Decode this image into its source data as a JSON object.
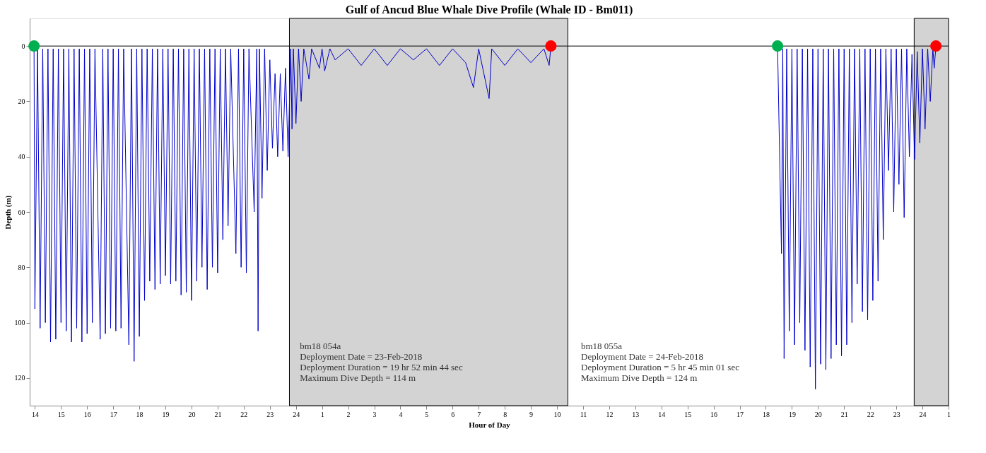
{
  "chart_data": {
    "type": "line",
    "title": "Gulf of Ancud Blue Whale Dive Profile (Whale ID - Bm011)",
    "xlabel": "Hour of Day",
    "ylabel": "Depth (m)",
    "series": [
      {
        "color": "#0000cc",
        "x": [
          "2018-02-23T13:58",
          "2018-02-23T14:00",
          "2018-02-23T14:06",
          "2018-02-23T14:12",
          "2018-02-23T14:18",
          "2018-02-23T14:24",
          "2018-02-23T14:30",
          "2018-02-23T14:36",
          "2018-02-23T14:42",
          "2018-02-23T14:48",
          "2018-02-23T14:54",
          "2018-02-23T15:00",
          "2018-02-23T15:06",
          "2018-02-23T15:12",
          "2018-02-23T15:18",
          "2018-02-23T15:24",
          "2018-02-23T15:30",
          "2018-02-23T15:36",
          "2018-02-23T15:42",
          "2018-02-23T15:48",
          "2018-02-23T15:54",
          "2018-02-23T16:00",
          "2018-02-23T16:06",
          "2018-02-23T16:12",
          "2018-02-23T16:18",
          "2018-02-23T16:30",
          "2018-02-23T16:36",
          "2018-02-23T16:42",
          "2018-02-23T16:48",
          "2018-02-23T16:54",
          "2018-02-23T17:00",
          "2018-02-23T17:06",
          "2018-02-23T17:12",
          "2018-02-23T17:18",
          "2018-02-23T17:24",
          "2018-02-23T17:36",
          "2018-02-23T17:42",
          "2018-02-23T17:48",
          "2018-02-23T17:54",
          "2018-02-23T18:00",
          "2018-02-23T18:06",
          "2018-02-23T18:12",
          "2018-02-23T18:18",
          "2018-02-23T18:24",
          "2018-02-23T18:30",
          "2018-02-23T18:36",
          "2018-02-23T18:42",
          "2018-02-23T18:48",
          "2018-02-23T18:54",
          "2018-02-23T19:00",
          "2018-02-23T19:06",
          "2018-02-23T19:12",
          "2018-02-23T19:18",
          "2018-02-23T19:24",
          "2018-02-23T19:30",
          "2018-02-23T19:36",
          "2018-02-23T19:42",
          "2018-02-23T19:48",
          "2018-02-23T19:54",
          "2018-02-23T20:00",
          "2018-02-23T20:06",
          "2018-02-23T20:12",
          "2018-02-23T20:18",
          "2018-02-23T20:24",
          "2018-02-23T20:30",
          "2018-02-23T20:36",
          "2018-02-23T20:42",
          "2018-02-23T20:48",
          "2018-02-23T20:54",
          "2018-02-23T21:00",
          "2018-02-23T21:06",
          "2018-02-23T21:12",
          "2018-02-23T21:18",
          "2018-02-23T21:24",
          "2018-02-23T21:30",
          "2018-02-23T21:42",
          "2018-02-23T21:48",
          "2018-02-23T21:54",
          "2018-02-23T22:00",
          "2018-02-23T22:06",
          "2018-02-23T22:12",
          "2018-02-23T22:24",
          "2018-02-23T22:30",
          "2018-02-23T22:33",
          "2018-02-23T22:36",
          "2018-02-23T22:42",
          "2018-02-23T22:48",
          "2018-02-23T22:54",
          "2018-02-23T23:00",
          "2018-02-23T23:06",
          "2018-02-23T23:12",
          "2018-02-23T23:18",
          "2018-02-23T23:24",
          "2018-02-23T23:30",
          "2018-02-23T23:36",
          "2018-02-23T23:42",
          "2018-02-23T23:48",
          "2018-02-23T23:51",
          "2018-02-23T23:54",
          "2018-02-24T00:00",
          "2018-02-24T00:06",
          "2018-02-24T00:12",
          "2018-02-24T00:18",
          "2018-02-24T00:30",
          "2018-02-24T00:36",
          "2018-02-24T00:54",
          "2018-02-24T01:00",
          "2018-02-24T01:06",
          "2018-02-24T01:18",
          "2018-02-24T01:30",
          "2018-02-24T02:00",
          "2018-02-24T02:30",
          "2018-02-24T03:00",
          "2018-02-24T03:30",
          "2018-02-24T04:00",
          "2018-02-24T04:30",
          "2018-02-24T05:00",
          "2018-02-24T05:30",
          "2018-02-24T06:00",
          "2018-02-24T06:30",
          "2018-02-24T06:48",
          "2018-02-24T07:00",
          "2018-02-24T07:24",
          "2018-02-24T07:30",
          "2018-02-24T08:00",
          "2018-02-24T08:30",
          "2018-02-24T09:00",
          "2018-02-24T09:30",
          "2018-02-24T09:42",
          "2018-02-24T09:46"
        ],
        "values": [
          0,
          95,
          1,
          102,
          1,
          100,
          1,
          107,
          1,
          106,
          1,
          100,
          1,
          103,
          1,
          107,
          1,
          102,
          1,
          107,
          1,
          104,
          1,
          100,
          1,
          106,
          1,
          104,
          1,
          102,
          1,
          103,
          1,
          102,
          1,
          108,
          1,
          114,
          1,
          105,
          1,
          92,
          1,
          85,
          1,
          88,
          1,
          86,
          1,
          83,
          1,
          86,
          1,
          85,
          1,
          90,
          1,
          89,
          1,
          92,
          1,
          85,
          1,
          80,
          1,
          88,
          1,
          80,
          1,
          82,
          1,
          70,
          1,
          65,
          1,
          75,
          1,
          80,
          1,
          82,
          1,
          60,
          1,
          103,
          1,
          55,
          1,
          45,
          5,
          37,
          10,
          40,
          10,
          38,
          8,
          40,
          1,
          30,
          1,
          28,
          1,
          20,
          1,
          12,
          1,
          8,
          1,
          9,
          1,
          5,
          1,
          7,
          1,
          7,
          1,
          5,
          1,
          7,
          1,
          6,
          15,
          1,
          19,
          1,
          7,
          1,
          6,
          1,
          7,
          0
        ]
      },
      {
        "color": "#0000cc",
        "x": [
          "2018-02-24T18:27",
          "2018-02-24T18:36",
          "2018-02-24T18:39",
          "2018-02-24T18:42",
          "2018-02-24T18:48",
          "2018-02-24T18:54",
          "2018-02-24T19:00",
          "2018-02-24T19:06",
          "2018-02-24T19:12",
          "2018-02-24T19:18",
          "2018-02-24T19:24",
          "2018-02-24T19:30",
          "2018-02-24T19:36",
          "2018-02-24T19:42",
          "2018-02-24T19:48",
          "2018-02-24T19:54",
          "2018-02-24T20:00",
          "2018-02-24T20:06",
          "2018-02-24T20:12",
          "2018-02-24T20:18",
          "2018-02-24T20:24",
          "2018-02-24T20:30",
          "2018-02-24T20:36",
          "2018-02-24T20:42",
          "2018-02-24T20:48",
          "2018-02-24T20:54",
          "2018-02-24T21:00",
          "2018-02-24T21:06",
          "2018-02-24T21:12",
          "2018-02-24T21:18",
          "2018-02-24T21:24",
          "2018-02-24T21:30",
          "2018-02-24T21:36",
          "2018-02-24T21:42",
          "2018-02-24T21:48",
          "2018-02-24T21:54",
          "2018-02-24T22:00",
          "2018-02-24T22:06",
          "2018-02-24T22:12",
          "2018-02-24T22:18",
          "2018-02-24T22:24",
          "2018-02-24T22:30",
          "2018-02-24T22:36",
          "2018-02-24T22:42",
          "2018-02-24T22:48",
          "2018-02-24T22:54",
          "2018-02-24T23:00",
          "2018-02-24T23:06",
          "2018-02-24T23:12",
          "2018-02-24T23:18",
          "2018-02-24T23:24",
          "2018-02-24T23:30",
          "2018-02-24T23:36",
          "2018-02-24T23:42",
          "2018-02-24T23:48",
          "2018-02-24T23:54",
          "2018-02-25T00:00",
          "2018-02-25T00:06",
          "2018-02-25T00:12",
          "2018-02-25T00:18",
          "2018-02-25T00:24",
          "2018-02-25T00:27",
          "2018-02-25T00:31"
        ],
        "values": [
          0,
          75,
          1,
          113,
          1,
          103,
          1,
          108,
          1,
          100,
          1,
          110,
          1,
          116,
          1,
          124,
          1,
          115,
          1,
          117,
          1,
          113,
          1,
          108,
          1,
          112,
          1,
          108,
          1,
          100,
          1,
          86,
          1,
          96,
          1,
          99,
          1,
          92,
          1,
          85,
          1,
          70,
          1,
          45,
          1,
          60,
          1,
          50,
          1,
          62,
          1,
          40,
          3,
          41,
          2,
          35,
          1,
          30,
          1,
          20,
          1,
          8,
          0
        ]
      },
      {
        "type": "scatter",
        "x": [
          "2018-02-23T13:58",
          "2018-02-24T09:46",
          "2018-02-24T18:27",
          "2018-02-25T00:31"
        ],
        "values": [
          0,
          0,
          0,
          0
        ],
        "colors": [
          "#00b050",
          "#ff0000",
          "#00b050",
          "#ff0000"
        ]
      }
    ],
    "xlim": [
      "2018-02-23T13:48",
      "2018-02-25T01:00"
    ],
    "xticks": [
      {
        "value": "2018-02-23T14:00",
        "label": "14"
      },
      {
        "value": "2018-02-23T15:00",
        "label": "15"
      },
      {
        "value": "2018-02-23T16:00",
        "label": "16"
      },
      {
        "value": "2018-02-23T17:00",
        "label": "17"
      },
      {
        "value": "2018-02-23T18:00",
        "label": "18"
      },
      {
        "value": "2018-02-23T19:00",
        "label": "19"
      },
      {
        "value": "2018-02-23T20:00",
        "label": "20"
      },
      {
        "value": "2018-02-23T21:00",
        "label": "21"
      },
      {
        "value": "2018-02-23T22:00",
        "label": "22"
      },
      {
        "value": "2018-02-23T23:00",
        "label": "23"
      },
      {
        "value": "2018-02-24T00:00",
        "label": "24"
      },
      {
        "value": "2018-02-24T01:00",
        "label": "1"
      },
      {
        "value": "2018-02-24T02:00",
        "label": "2"
      },
      {
        "value": "2018-02-24T03:00",
        "label": "3"
      },
      {
        "value": "2018-02-24T04:00",
        "label": "4"
      },
      {
        "value": "2018-02-24T05:00",
        "label": "5"
      },
      {
        "value": "2018-02-24T06:00",
        "label": "6"
      },
      {
        "value": "2018-02-24T07:00",
        "label": "7"
      },
      {
        "value": "2018-02-24T08:00",
        "label": "8"
      },
      {
        "value": "2018-02-24T09:00",
        "label": "9"
      },
      {
        "value": "2018-02-24T10:00",
        "label": "10"
      },
      {
        "value": "2018-02-24T11:00",
        "label": "11"
      },
      {
        "value": "2018-02-24T12:00",
        "label": "12"
      },
      {
        "value": "2018-02-24T13:00",
        "label": "13"
      },
      {
        "value": "2018-02-24T14:00",
        "label": "14"
      },
      {
        "value": "2018-02-24T15:00",
        "label": "15"
      },
      {
        "value": "2018-02-24T16:00",
        "label": "16"
      },
      {
        "value": "2018-02-24T17:00",
        "label": "17"
      },
      {
        "value": "2018-02-24T18:00",
        "label": "18"
      },
      {
        "value": "2018-02-24T19:00",
        "label": "19"
      },
      {
        "value": "2018-02-24T20:00",
        "label": "20"
      },
      {
        "value": "2018-02-24T21:00",
        "label": "21"
      },
      {
        "value": "2018-02-24T22:00",
        "label": "22"
      },
      {
        "value": "2018-02-24T23:00",
        "label": "23"
      },
      {
        "value": "2018-02-25T00:00",
        "label": "24"
      },
      {
        "value": "2018-02-25T01:00",
        "label": "1"
      }
    ],
    "ylim": [
      130,
      -10
    ],
    "yticks": [
      0,
      20,
      40,
      60,
      80,
      100,
      120
    ],
    "bands": [
      {
        "axis": "x",
        "from": "2018-02-23T23:45",
        "to": "2018-02-24T10:25",
        "color": "#d3d3d3"
      },
      {
        "axis": "x",
        "from": "2018-02-24T23:41",
        "to": "2018-02-25T01:00",
        "color": "#d3d3d3"
      }
    ],
    "ref_lines": [
      {
        "axis": "y",
        "value": 0,
        "color": "#000000"
      }
    ],
    "annotations": [
      "bm18 054a\nDeployment Date            = 23-Feb-2018\nDeployment Duration   = 19 hr 52 min 44 sec\nMaximum Dive Depth = 114 m",
      "bm18 055a\nDeployment Date            = 24-Feb-2018\nDeployment Duration   = 5 hr 45 min 01 sec\nMaximum Dive Depth = 124 m"
    ],
    "grid": false,
    "line_style": "solid"
  }
}
